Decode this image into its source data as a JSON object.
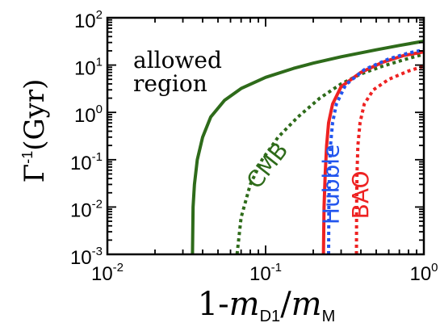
{
  "chart_data": {
    "type": "line",
    "title": "",
    "xscale": "log",
    "yscale": "log",
    "xlim": [
      0.01,
      1
    ],
    "ylim": [
      0.001,
      100
    ],
    "xlabel": {
      "prefix": "1-",
      "num_symbol": "m",
      "num_sub": "D1",
      "slash": "/",
      "den_symbol": "m",
      "den_sub": "M"
    },
    "ylabel": {
      "symbol": "Γ",
      "exponent": "-1",
      "unit": "(Gyr)"
    },
    "xticks": [
      {
        "value": 0.01,
        "base": "10",
        "exp": "-2"
      },
      {
        "value": 0.1,
        "base": "10",
        "exp": "-1"
      },
      {
        "value": 1,
        "base": "10",
        "exp": "0"
      }
    ],
    "yticks": [
      {
        "value": 0.001,
        "base": "10",
        "exp": "-3"
      },
      {
        "value": 0.01,
        "base": "10",
        "exp": "-2"
      },
      {
        "value": 0.1,
        "base": "10",
        "exp": "-1"
      },
      {
        "value": 1,
        "base": "10",
        "exp": "0"
      },
      {
        "value": 10,
        "base": "10",
        "exp": "1"
      },
      {
        "value": 100,
        "base": "10",
        "exp": "2"
      }
    ],
    "annotation": [
      "allowed",
      "region"
    ],
    "colors": {
      "cmb": "#2e6b1a",
      "hubble": "#2255ee",
      "bao": "#ee2222",
      "axis": "#000000"
    },
    "series": [
      {
        "id": "cmb_solid",
        "label": "CMB",
        "color": "#2e6b1a",
        "style": "solid",
        "points": [
          [
            0.0345,
            0.001
          ],
          [
            0.0348,
            0.01
          ],
          [
            0.0355,
            0.03
          ],
          [
            0.037,
            0.1
          ],
          [
            0.04,
            0.3
          ],
          [
            0.045,
            0.8
          ],
          [
            0.055,
            1.8
          ],
          [
            0.07,
            3.2
          ],
          [
            0.1,
            5.5
          ],
          [
            0.15,
            8.5
          ],
          [
            0.2,
            11
          ],
          [
            0.3,
            15
          ],
          [
            0.5,
            21
          ],
          [
            0.7,
            26
          ],
          [
            1.0,
            32
          ]
        ]
      },
      {
        "id": "cmb_dotted",
        "color": "#2e6b1a",
        "style": "dotted",
        "points": [
          [
            0.066,
            0.001
          ],
          [
            0.07,
            0.006
          ],
          [
            0.08,
            0.03
          ],
          [
            0.095,
            0.1
          ],
          [
            0.12,
            0.3
          ],
          [
            0.16,
            0.8
          ],
          [
            0.22,
            2
          ],
          [
            0.3,
            4
          ],
          [
            0.4,
            6.5
          ],
          [
            0.55,
            9.5
          ],
          [
            0.75,
            13
          ],
          [
            1.0,
            17
          ]
        ]
      },
      {
        "id": "hubble_solid",
        "color": "#ee2222",
        "style": "solid",
        "points": [
          [
            0.232,
            0.001
          ],
          [
            0.234,
            0.01
          ],
          [
            0.238,
            0.05
          ],
          [
            0.243,
            0.2
          ],
          [
            0.25,
            0.6
          ],
          [
            0.265,
            1.5
          ],
          [
            0.3,
            3.5
          ],
          [
            0.4,
            7
          ],
          [
            0.55,
            11.5
          ],
          [
            0.75,
            16
          ],
          [
            1.0,
            19
          ]
        ]
      },
      {
        "id": "hubble_dotted",
        "label": "Hubble",
        "color": "#2255ee",
        "style": "dotted",
        "points": [
          [
            0.25,
            0.001
          ],
          [
            0.251,
            0.01
          ],
          [
            0.253,
            0.05
          ],
          [
            0.257,
            0.2
          ],
          [
            0.265,
            0.6
          ],
          [
            0.28,
            1.5
          ],
          [
            0.32,
            3.8
          ],
          [
            0.42,
            8
          ],
          [
            0.6,
            13.5
          ],
          [
            0.8,
            18
          ],
          [
            1.0,
            21
          ]
        ]
      },
      {
        "id": "bao_dotted",
        "label": "BAO",
        "color": "#ee2222",
        "style": "dotted",
        "points": [
          [
            0.375,
            0.001
          ],
          [
            0.376,
            0.01
          ],
          [
            0.378,
            0.05
          ],
          [
            0.383,
            0.2
          ],
          [
            0.395,
            0.6
          ],
          [
            0.42,
            1.5
          ],
          [
            0.48,
            3
          ],
          [
            0.6,
            5
          ],
          [
            0.8,
            7.5
          ],
          [
            1.0,
            9.5
          ]
        ]
      }
    ],
    "curve_labels": [
      {
        "text": "CMB",
        "series": "cmb_solid",
        "anchor": [
          0.112,
          0.06
        ],
        "angle": -52
      },
      {
        "text": "Hubble",
        "series": "hubble_dotted",
        "anchor": [
          0.29,
          0.03
        ],
        "angle": -90
      },
      {
        "text": "BAO",
        "series": "bao_dotted",
        "anchor": [
          0.445,
          0.018
        ],
        "angle": -90
      }
    ]
  }
}
